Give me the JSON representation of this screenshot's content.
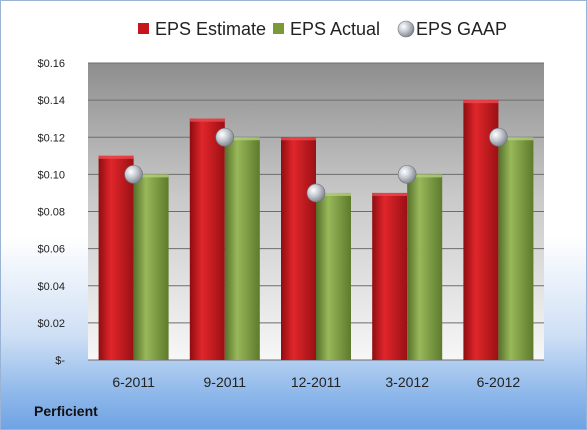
{
  "company": "Perficient",
  "chart_data": {
    "type": "bar",
    "categories": [
      "6-2011",
      "9-2011",
      "12-2011",
      "3-2012",
      "6-2012"
    ],
    "series": [
      {
        "name": "EPS Estimate",
        "values": [
          0.11,
          0.13,
          0.12,
          0.09,
          0.14
        ],
        "color": "#c4161c"
      },
      {
        "name": "EPS Actual",
        "values": [
          0.1,
          0.12,
          0.09,
          0.1,
          0.12
        ],
        "color": "#7a9a3a"
      },
      {
        "name": "EPS GAAP",
        "values": [
          0.1,
          0.12,
          0.09,
          0.1,
          0.12
        ],
        "color": "#b8bcc4",
        "marker": "sphere"
      }
    ],
    "ylim": [
      0,
      0.16
    ],
    "yticks": [
      0,
      0.02,
      0.04,
      0.06,
      0.08,
      0.1,
      0.12,
      0.14,
      0.16
    ],
    "ytick_labels": [
      "$-",
      "$0.02",
      "$0.04",
      "$0.06",
      "$0.08",
      "$0.10",
      "$0.12",
      "$0.14",
      "$0.16"
    ],
    "legend_position": "top",
    "grid": true
  }
}
